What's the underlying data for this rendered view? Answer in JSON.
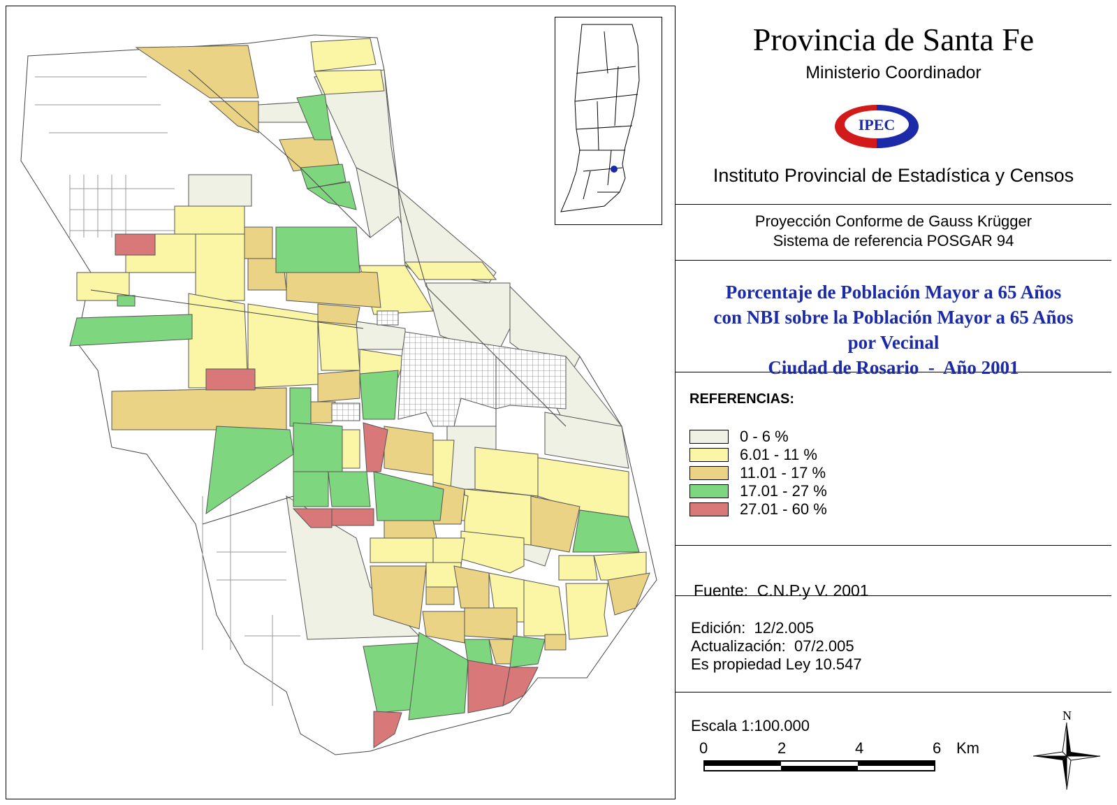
{
  "header": {
    "title": "Provincia de Santa Fe",
    "ministry": "Ministerio Coordinador",
    "logo_text": "IPEC",
    "institute": "Instituto Provincial de Estadística y Censos"
  },
  "projection": {
    "line1": "Proyección Conforme de Gauss Krügger",
    "line2": "Sistema de referencia POSGAR 94"
  },
  "map_title": {
    "line1": "Porcentaje de Población Mayor a 65 Años",
    "line2": "con NBI sobre la Población Mayor a 65 Años",
    "line3": "por Vecinal",
    "line4": "Ciudad de Rosario  -  Año 2001"
  },
  "legend": {
    "title": "REFERENCIAS:",
    "items": [
      {
        "label": "0 - 6 %",
        "color": "#eef1e3"
      },
      {
        "label": "6.01 - 11 %",
        "color": "#fbf5a6"
      },
      {
        "label": "11.01 - 17 %",
        "color": "#ead384"
      },
      {
        "label": "17.01 - 27 %",
        "color": "#7ed77e"
      },
      {
        "label": "27.01 - 60 %",
        "color": "#d97878"
      }
    ]
  },
  "source": "Fuente:  C.N.P.y V. 2001",
  "edition": {
    "line1": "Edición:  12/2.005",
    "line2": "Actualización:  07/2.005",
    "line3": "Es propiedad Ley 10.547"
  },
  "scale": {
    "label": "Escala 1:100.000",
    "ticks": [
      "0",
      "2",
      "4",
      "6"
    ],
    "unit": "Km"
  },
  "north": "N"
}
